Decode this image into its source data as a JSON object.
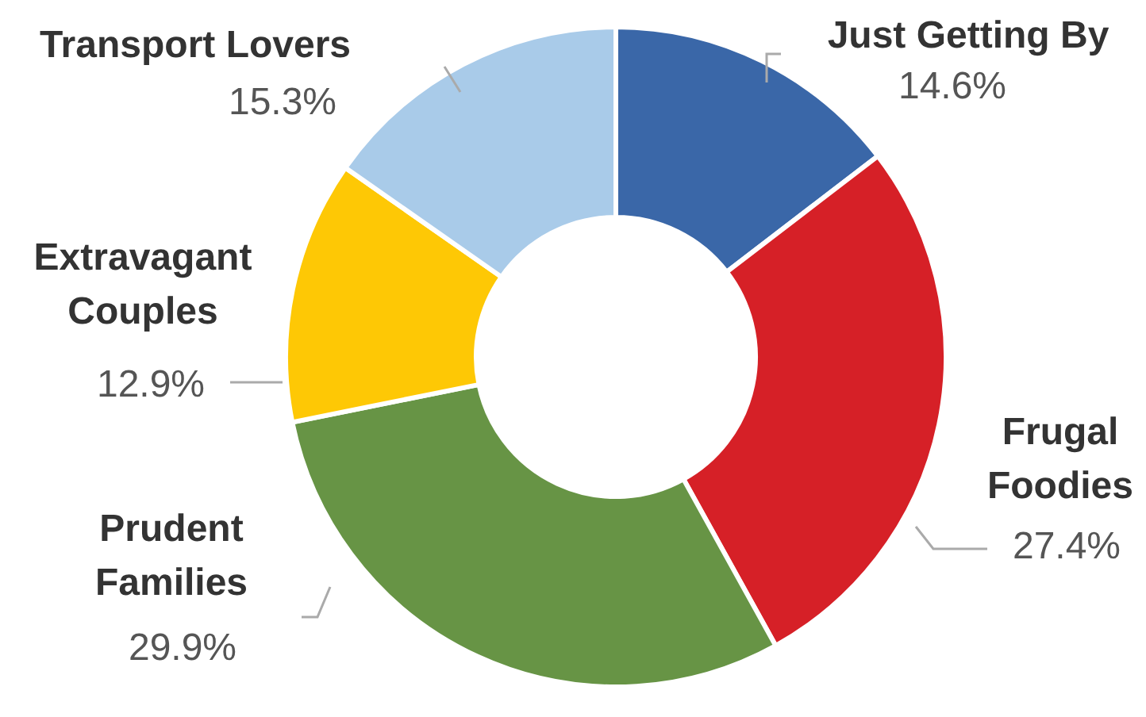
{
  "chart_data": {
    "type": "donut",
    "categories": [
      "Just Getting By",
      "Frugal Foodies",
      "Prudent Families",
      "Extravagant Couples",
      "Transport Lovers"
    ],
    "values": [
      14.6,
      27.4,
      29.9,
      12.9,
      15.3
    ],
    "colors": [
      "#3a67a8",
      "#d62027",
      "#679445",
      "#fec805",
      "#a9cbe9"
    ],
    "value_labels": [
      "14.6%",
      "27.4%",
      "29.9%",
      "12.9%",
      "15.3%"
    ],
    "legend": false
  }
}
